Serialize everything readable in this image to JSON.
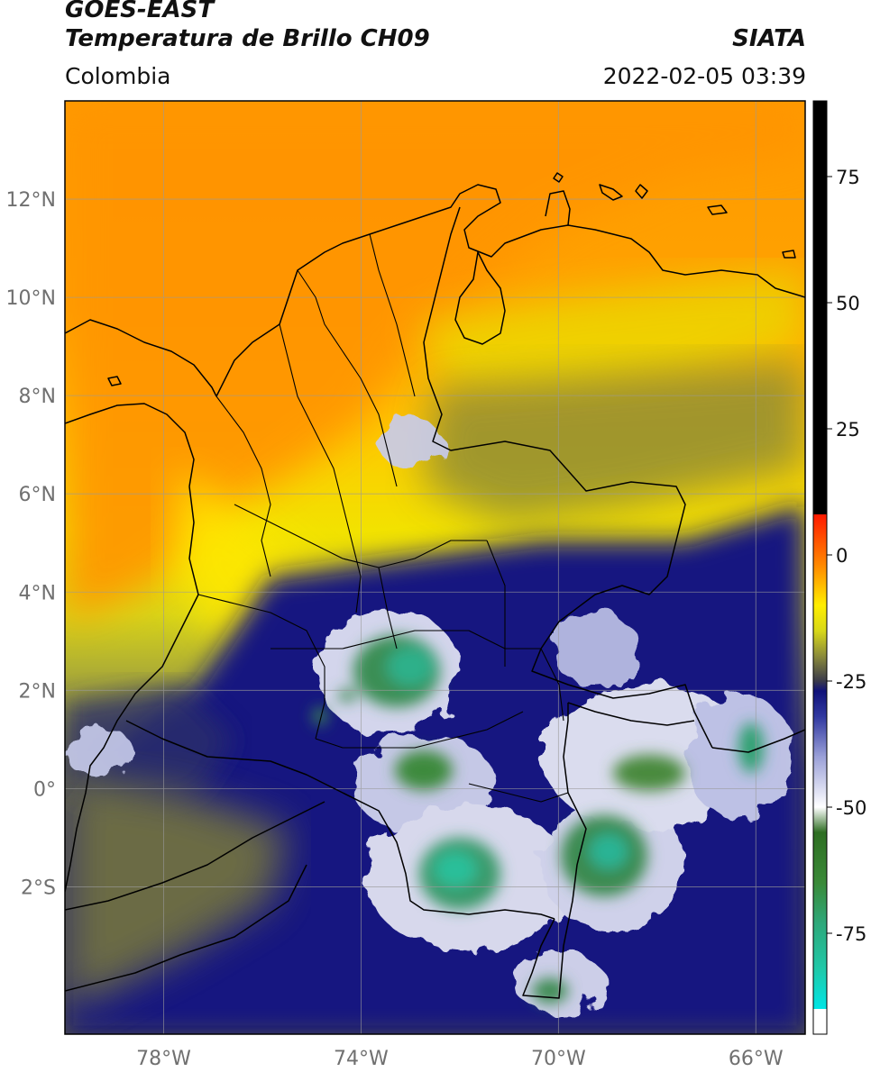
{
  "header": {
    "satellite": "GOES-EAST",
    "product": "Temperatura de Brillo CH09",
    "agency": "SIATA",
    "region": "Colombia",
    "datetime": "2022-02-05 03:39"
  },
  "map": {
    "lon_range": [
      -80,
      -65
    ],
    "lat_range": [
      -5,
      14
    ],
    "lat_ticks": [
      {
        "value": 12,
        "label": "12°N"
      },
      {
        "value": 10,
        "label": "10°N"
      },
      {
        "value": 8,
        "label": "8°N"
      },
      {
        "value": 6,
        "label": "6°N"
      },
      {
        "value": 4,
        "label": "4°N"
      },
      {
        "value": 2,
        "label": "2°N"
      },
      {
        "value": 0,
        "label": "0°"
      },
      {
        "value": -2,
        "label": "2°S"
      }
    ],
    "lon_ticks": [
      {
        "value": -78,
        "label": "78°W"
      },
      {
        "value": -74,
        "label": "74°W"
      },
      {
        "value": -70,
        "label": "70°W"
      },
      {
        "value": -66,
        "label": "66°W"
      }
    ],
    "grid": true
  },
  "colorbar": {
    "range": [
      -95,
      90
    ],
    "ticks": [
      {
        "value": 75,
        "label": "75"
      },
      {
        "value": 50,
        "label": "50"
      },
      {
        "value": 25,
        "label": "25"
      },
      {
        "value": 0,
        "label": "0"
      },
      {
        "value": -25,
        "label": "-25"
      },
      {
        "value": -50,
        "label": "-50"
      },
      {
        "value": -75,
        "label": "-75"
      }
    ],
    "stops": [
      {
        "value": -95,
        "color": "#ffffff"
      },
      {
        "value": -90,
        "color": "#ffffff"
      },
      {
        "value": -90,
        "color": "#00e5e5"
      },
      {
        "value": -82,
        "color": "#20c8a8"
      },
      {
        "value": -73,
        "color": "#2ea87a"
      },
      {
        "value": -65,
        "color": "#3a8a38"
      },
      {
        "value": -55,
        "color": "#2e6e22"
      },
      {
        "value": -50,
        "color": "#ffffff"
      },
      {
        "value": -40,
        "color": "#9aa0d8"
      },
      {
        "value": -32,
        "color": "#3038a0"
      },
      {
        "value": -27,
        "color": "#10127a"
      },
      {
        "value": -25,
        "color": "#3a3a4a"
      },
      {
        "value": -20,
        "color": "#8c8c3a"
      },
      {
        "value": -15,
        "color": "#d8d818"
      },
      {
        "value": -10,
        "color": "#ffee00"
      },
      {
        "value": -2,
        "color": "#ff8800"
      },
      {
        "value": 8,
        "color": "#ff1a00"
      },
      {
        "value": 8,
        "color": "#000000"
      },
      {
        "value": 90,
        "color": "#000000"
      }
    ]
  }
}
